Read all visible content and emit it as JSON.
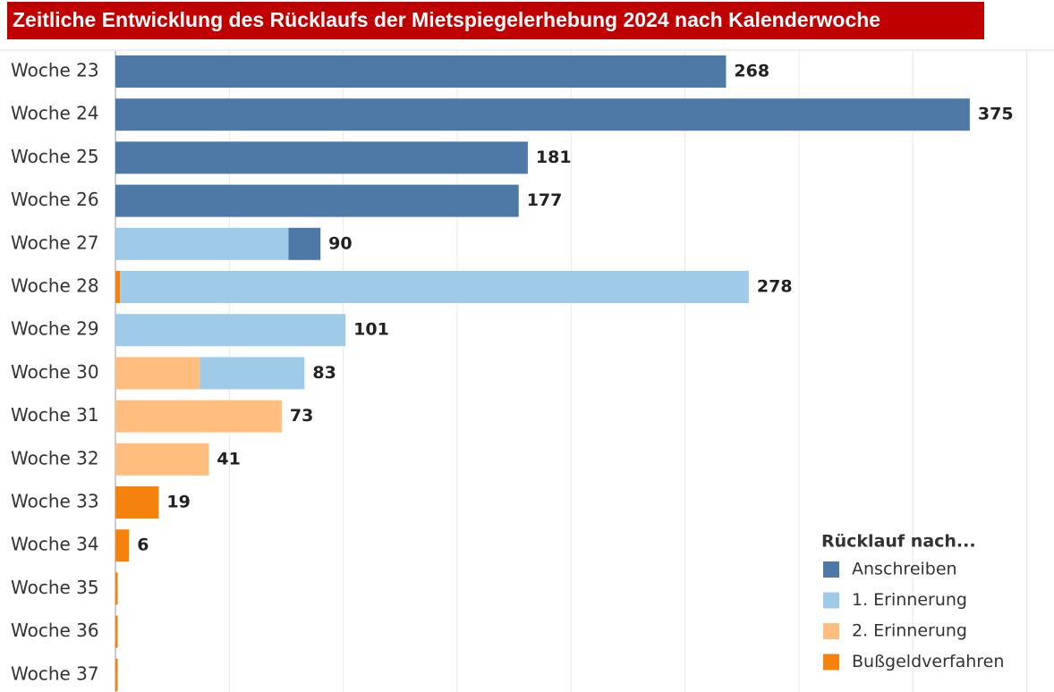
{
  "chart_data": {
    "type": "stacked-bar-horizontal",
    "title": "Zeitliche Entwicklung des Rücklaufs der Mietspiegelerhebung 2024 nach Kalenderwoche",
    "categories": [
      "Woche 23",
      "Woche 24",
      "Woche 25",
      "Woche 26",
      "Woche 27",
      "Woche 28",
      "Woche 29",
      "Woche 30",
      "Woche 31",
      "Woche 32",
      "Woche 33",
      "Woche 34",
      "Woche 35",
      "Woche 36",
      "Woche 37"
    ],
    "series": [
      {
        "name": "Anschreiben",
        "color": "#4e79a7",
        "values": [
          268,
          375,
          181,
          177,
          14,
          null,
          null,
          null,
          null,
          null,
          null,
          null,
          null,
          null,
          null
        ]
      },
      {
        "name": "1. Erinnerung",
        "color": "#a0cbe8",
        "values": [
          null,
          null,
          null,
          null,
          76,
          276,
          101,
          46,
          null,
          null,
          null,
          null,
          null,
          null,
          null
        ]
      },
      {
        "name": "2. Erinnerung",
        "color": "#ffbe7d",
        "values": [
          null,
          null,
          null,
          null,
          null,
          null,
          null,
          37,
          73,
          41,
          null,
          null,
          null,
          null,
          null
        ]
      },
      {
        "name": "Bußgeldverfahren",
        "color": "#f5820d",
        "values": [
          null,
          null,
          null,
          null,
          null,
          2,
          null,
          null,
          null,
          null,
          19,
          6,
          1,
          1,
          1
        ]
      }
    ],
    "totals": [
      268,
      375,
      181,
      177,
      90,
      278,
      101,
      83,
      73,
      41,
      19,
      6,
      null,
      null,
      null
    ],
    "legend_title": "Rücklauf nach...",
    "legend": "bottom-right",
    "xlim": [
      0,
      410
    ],
    "xticks": [
      0,
      50,
      100,
      150,
      200,
      250,
      300,
      350,
      400
    ],
    "grid": true
  }
}
